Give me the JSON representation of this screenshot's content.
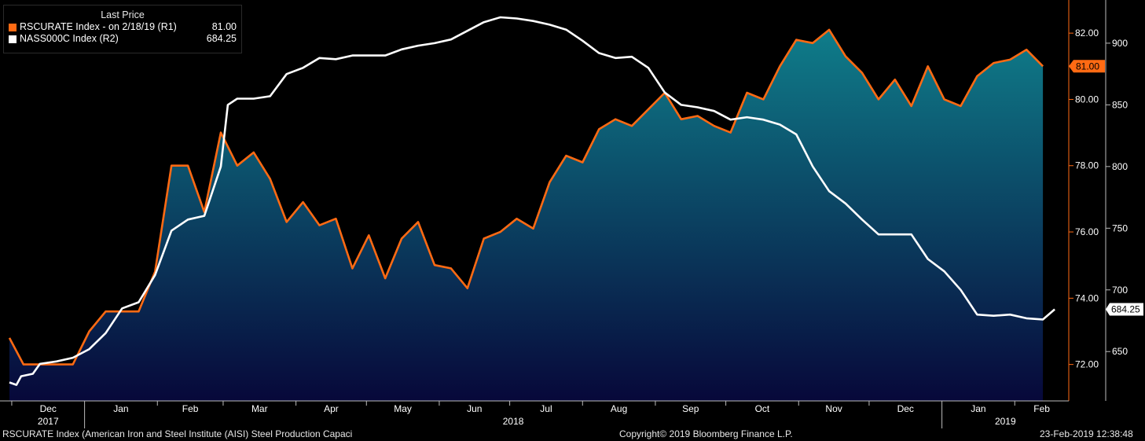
{
  "legend": {
    "heading": "Last Price",
    "series1_label": "RSCURATE Index -  on 2/18/19  (R1)",
    "series1_value": "81.00",
    "series2_label": "NASS000C Index  (R2)",
    "series2_value": "684.25"
  },
  "footer": {
    "left": "RSCURATE Index (American Iron and Steel Institute (AISI) Steel Production Capaci",
    "center": "Copyright© 2019 Bloomberg Finance L.P.",
    "right": "23-Feb-2019 12:38:48"
  },
  "chart_data": {
    "type": "area",
    "x_axis": {
      "months": [
        "Dec",
        "Jan",
        "Feb",
        "Mar",
        "Apr",
        "May",
        "Jun",
        "Jul",
        "Aug",
        "Sep",
        "Oct",
        "Nov",
        "Dec",
        "Jan",
        "Feb"
      ],
      "years": [
        "2017",
        "2018",
        "2019"
      ]
    },
    "axes": {
      "r1": {
        "range": [
          70.9,
          83.0
        ],
        "ticks": [
          "72.00",
          "74.00",
          "76.00",
          "78.00",
          "80.00",
          "82.00"
        ]
      },
      "r2": {
        "range": [
          610,
          935
        ],
        "ticks": [
          "650",
          "700",
          "750",
          "800",
          "850",
          "900"
        ]
      }
    },
    "last_labels": {
      "r1": "81.00",
      "r2": "684.25"
    },
    "colors": {
      "r1_line": "#ff6a13",
      "r2_line": "#ffffff",
      "fill_top": "#0f7d8a",
      "fill_bottom": "#07083a",
      "label_bg": "#ff6a13"
    },
    "series": [
      {
        "name": "RSCURATE Index",
        "axis": "r1",
        "type": "area",
        "points": [
          [
            "2017-11-30",
            72.8
          ],
          [
            "2017-12-06",
            72.0
          ],
          [
            "2017-12-13",
            72.0
          ],
          [
            "2017-12-20",
            72.0
          ],
          [
            "2017-12-27",
            72.0
          ],
          [
            "2018-01-03",
            73.0
          ],
          [
            "2018-01-10",
            73.6
          ],
          [
            "2018-01-17",
            73.6
          ],
          [
            "2018-01-24",
            73.6
          ],
          [
            "2018-01-31",
            74.8
          ],
          [
            "2018-02-07",
            78.0
          ],
          [
            "2018-02-14",
            78.0
          ],
          [
            "2018-02-21",
            76.6
          ],
          [
            "2018-02-28",
            79.0
          ],
          [
            "2018-03-07",
            78.0
          ],
          [
            "2018-03-14",
            78.4
          ],
          [
            "2018-03-21",
            77.6
          ],
          [
            "2018-03-28",
            76.3
          ],
          [
            "2018-04-04",
            76.9
          ],
          [
            "2018-04-11",
            76.2
          ],
          [
            "2018-04-18",
            76.4
          ],
          [
            "2018-04-25",
            74.9
          ],
          [
            "2018-05-02",
            75.9
          ],
          [
            "2018-05-09",
            74.6
          ],
          [
            "2018-05-16",
            75.8
          ],
          [
            "2018-05-23",
            76.3
          ],
          [
            "2018-05-30",
            75.0
          ],
          [
            "2018-06-06",
            74.9
          ],
          [
            "2018-06-13",
            74.3
          ],
          [
            "2018-06-20",
            75.8
          ],
          [
            "2018-06-27",
            76.0
          ],
          [
            "2018-07-04",
            76.4
          ],
          [
            "2018-07-11",
            76.1
          ],
          [
            "2018-07-18",
            77.5
          ],
          [
            "2018-07-25",
            78.3
          ],
          [
            "2018-08-01",
            78.1
          ],
          [
            "2018-08-08",
            79.1
          ],
          [
            "2018-08-15",
            79.4
          ],
          [
            "2018-08-22",
            79.2
          ],
          [
            "2018-08-29",
            79.7
          ],
          [
            "2018-09-05",
            80.2
          ],
          [
            "2018-09-12",
            79.4
          ],
          [
            "2018-09-19",
            79.5
          ],
          [
            "2018-09-26",
            79.2
          ],
          [
            "2018-10-03",
            79.0
          ],
          [
            "2018-10-10",
            80.2
          ],
          [
            "2018-10-17",
            80.0
          ],
          [
            "2018-10-24",
            81.0
          ],
          [
            "2018-10-31",
            81.8
          ],
          [
            "2018-11-07",
            81.7
          ],
          [
            "2018-11-14",
            82.1
          ],
          [
            "2018-11-21",
            81.3
          ],
          [
            "2018-11-28",
            80.8
          ],
          [
            "2018-12-05",
            80.0
          ],
          [
            "2018-12-12",
            80.6
          ],
          [
            "2018-12-19",
            79.8
          ],
          [
            "2018-12-26",
            81.0
          ],
          [
            "2019-01-02",
            80.0
          ],
          [
            "2019-01-09",
            79.8
          ],
          [
            "2019-01-16",
            80.7
          ],
          [
            "2019-01-23",
            81.1
          ],
          [
            "2019-01-30",
            81.2
          ],
          [
            "2019-02-06",
            81.5
          ],
          [
            "2019-02-13",
            81.0
          ]
        ]
      },
      {
        "name": "NASS000C Index",
        "axis": "r2",
        "type": "line",
        "points": [
          [
            "2017-11-30",
            625
          ],
          [
            "2017-12-03",
            623
          ],
          [
            "2017-12-05",
            630
          ],
          [
            "2017-12-10",
            632
          ],
          [
            "2017-12-13",
            640
          ],
          [
            "2017-12-20",
            642
          ],
          [
            "2017-12-27",
            645
          ],
          [
            "2018-01-03",
            652
          ],
          [
            "2018-01-10",
            665
          ],
          [
            "2018-01-17",
            685
          ],
          [
            "2018-01-24",
            690
          ],
          [
            "2018-01-31",
            712
          ],
          [
            "2018-02-07",
            748
          ],
          [
            "2018-02-14",
            757
          ],
          [
            "2018-02-21",
            760
          ],
          [
            "2018-02-28",
            800
          ],
          [
            "2018-03-03",
            850
          ],
          [
            "2018-03-07",
            855
          ],
          [
            "2018-03-14",
            855
          ],
          [
            "2018-03-21",
            857
          ],
          [
            "2018-03-28",
            875
          ],
          [
            "2018-04-04",
            880
          ],
          [
            "2018-04-11",
            888
          ],
          [
            "2018-04-18",
            887
          ],
          [
            "2018-04-25",
            890
          ],
          [
            "2018-05-02",
            890
          ],
          [
            "2018-05-09",
            890
          ],
          [
            "2018-05-16",
            895
          ],
          [
            "2018-05-23",
            898
          ],
          [
            "2018-05-30",
            900
          ],
          [
            "2018-06-06",
            903
          ],
          [
            "2018-06-13",
            910
          ],
          [
            "2018-06-20",
            917
          ],
          [
            "2018-06-27",
            921
          ],
          [
            "2018-07-04",
            920
          ],
          [
            "2018-07-11",
            918
          ],
          [
            "2018-07-18",
            915
          ],
          [
            "2018-07-25",
            911
          ],
          [
            "2018-08-01",
            902
          ],
          [
            "2018-08-08",
            892
          ],
          [
            "2018-08-15",
            888
          ],
          [
            "2018-08-22",
            889
          ],
          [
            "2018-08-29",
            880
          ],
          [
            "2018-09-05",
            860
          ],
          [
            "2018-09-12",
            850
          ],
          [
            "2018-09-19",
            848
          ],
          [
            "2018-09-26",
            845
          ],
          [
            "2018-10-03",
            838
          ],
          [
            "2018-10-10",
            840
          ],
          [
            "2018-10-17",
            838
          ],
          [
            "2018-10-24",
            834
          ],
          [
            "2018-10-31",
            826
          ],
          [
            "2018-11-07",
            800
          ],
          [
            "2018-11-14",
            780
          ],
          [
            "2018-11-21",
            770
          ],
          [
            "2018-11-28",
            757
          ],
          [
            "2018-12-05",
            745
          ],
          [
            "2018-12-12",
            745
          ],
          [
            "2018-12-19",
            745
          ],
          [
            "2018-12-26",
            725
          ],
          [
            "2019-01-02",
            715
          ],
          [
            "2019-01-09",
            700
          ],
          [
            "2019-01-16",
            680
          ],
          [
            "2019-01-23",
            679
          ],
          [
            "2019-01-30",
            680
          ],
          [
            "2019-02-06",
            677
          ],
          [
            "2019-02-13",
            676
          ],
          [
            "2019-02-18",
            684.25
          ]
        ]
      }
    ]
  }
}
